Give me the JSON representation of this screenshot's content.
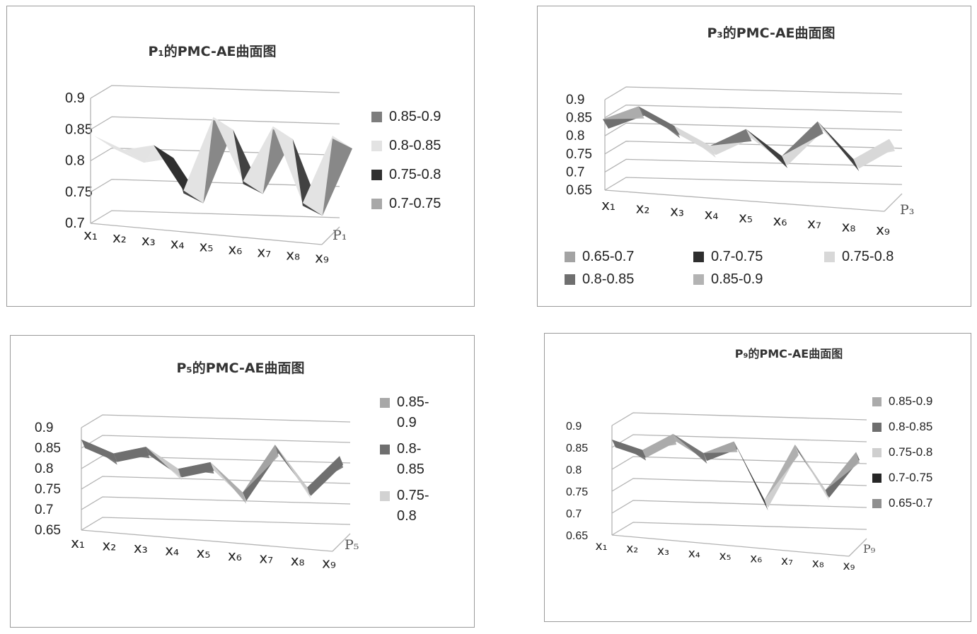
{
  "colors": {
    "0.65-0.7": "#9c9c9c",
    "0.7-0.75": "#a9a9a9",
    "0.75-0.8": "#333333",
    "0.8-0.85": "#e2e2e2",
    "0.85-0.9": "#7a7a7a"
  },
  "chart_data": [
    {
      "id": "p1",
      "type": "area",
      "title": "P₁的PMC-AE曲面图",
      "categories": [
        "x₁",
        "x₂",
        "x₃",
        "x₄",
        "x₅",
        "x₆",
        "x₇",
        "x₈",
        "x₉"
      ],
      "depth_label": "P₁",
      "yticks": [
        "0.9",
        "0.85",
        "0.8",
        "0.75",
        "0.7"
      ],
      "ylim": [
        0.7,
        0.9
      ],
      "series": [
        {
          "values": [
            0.84,
            0.82,
            0.83,
            0.76,
            0.88,
            0.78,
            0.87,
            0.75,
            0.86
          ]
        }
      ],
      "legend": [
        "0.85-0.9",
        "0.8-0.85",
        "0.75-0.8",
        "0.7-0.75"
      ],
      "legend_colors": [
        "#7d7d7d",
        "#e3e3e3",
        "#303030",
        "#a8a8a8"
      ],
      "legend_position": "right"
    },
    {
      "id": "p3",
      "type": "area",
      "title": "P₃的PMC-AE曲面图",
      "categories": [
        "x₁",
        "x₂",
        "x₃",
        "x₄",
        "x₅",
        "x₆",
        "x₇",
        "x₈",
        "x₉"
      ],
      "depth_label": "P₃",
      "yticks": [
        "0.9",
        "0.85",
        "0.8",
        "0.75",
        "0.7",
        "0.65"
      ],
      "ylim": [
        0.65,
        0.9
      ],
      "series": [
        {
          "values": [
            0.82,
            0.86,
            0.81,
            0.76,
            0.81,
            0.74,
            0.84,
            0.74,
            0.8
          ]
        }
      ],
      "legend": [
        "0.65-0.7",
        "0.7-0.75",
        "0.75-0.8",
        "0.8-0.85",
        "0.85-0.9"
      ],
      "legend_colors": [
        "#a3a3a3",
        "#2e2e2e",
        "#d8d8d8",
        "#6f6f6f",
        "#b3b3b3"
      ],
      "legend_position": "bottom"
    },
    {
      "id": "p5",
      "type": "area",
      "title": "P₅的PMC-AE曲面图",
      "categories": [
        "x₁",
        "x₂",
        "x₃",
        "x₄",
        "x₅",
        "x₆",
        "x₇",
        "x₈",
        "x₉"
      ],
      "depth_label": "P₅",
      "yticks": [
        "0.9",
        "0.85",
        "0.8",
        "0.75",
        "0.7",
        "0.65"
      ],
      "ylim": [
        0.65,
        0.9
      ],
      "series": [
        {
          "values": [
            0.85,
            0.82,
            0.84,
            0.79,
            0.81,
            0.74,
            0.86,
            0.76,
            0.84
          ]
        }
      ],
      "legend": [
        "0.85-\n0.9",
        "0.8-\n0.85",
        "0.75-\n0.8"
      ],
      "legend_colors": [
        "#a8a8a8",
        "#6f6f6f",
        "#d2d2d2"
      ],
      "legend_position": "right"
    },
    {
      "id": "p9",
      "type": "area",
      "title": "P₉的PMC-AE曲面图",
      "categories": [
        "x₁",
        "x₂",
        "x₃",
        "x₄",
        "x₅",
        "x₆",
        "x₇",
        "x₈",
        "x₉"
      ],
      "depth_label": "P₉",
      "yticks": [
        "0.9",
        "0.85",
        "0.8",
        "0.75",
        "0.7",
        "0.65"
      ],
      "ylim": [
        0.65,
        0.9
      ],
      "series": [
        {
          "values": [
            0.85,
            0.83,
            0.87,
            0.83,
            0.86,
            0.73,
            0.86,
            0.76,
            0.85
          ]
        }
      ],
      "legend": [
        "0.85-0.9",
        "0.8-0.85",
        "0.75-0.8",
        "0.7-0.75",
        "0.65-0.7"
      ],
      "legend_colors": [
        "#ababab",
        "#6e6e6e",
        "#cfcfcf",
        "#262626",
        "#8f8f8f"
      ],
      "legend_position": "right"
    }
  ]
}
